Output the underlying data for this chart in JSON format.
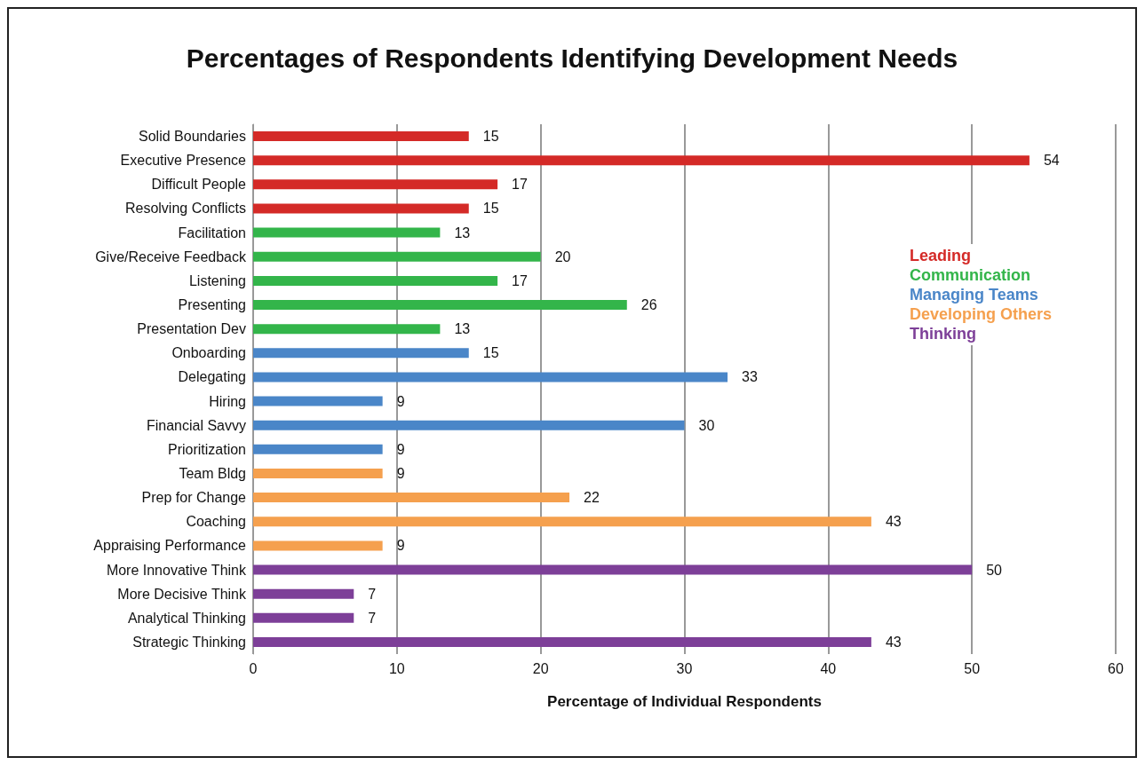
{
  "chart_data": {
    "type": "bar",
    "orientation": "horizontal",
    "title": "Percentages of Respondents Identifying Development Needs",
    "xlabel": "Percentage of Individual Respondents",
    "categories": [
      "Solid Boundaries",
      "Executive Presence",
      "Difficult People",
      "Resolving Conflicts",
      "Facilitation",
      "Give/Receive Feedback",
      "Listening",
      "Presenting",
      "Presentation Dev",
      "Onboarding",
      "Delegating",
      "Hiring",
      "Financial Savvy",
      "Prioritization",
      "Team Bldg",
      "Prep for Change",
      "Coaching",
      "Appraising Performance",
      "More Innovative Think",
      "More Decisive Think",
      "Analytical Thinking",
      "Strategic Thinking"
    ],
    "series": [
      {
        "name": "Leading",
        "color": "#d42a27",
        "values": [
          15,
          54,
          17,
          15,
          null,
          null,
          null,
          null,
          null,
          null,
          null,
          null,
          null,
          null,
          null,
          null,
          null,
          null,
          null,
          null,
          null,
          null
        ]
      },
      {
        "name": "Communication",
        "color": "#33b54a",
        "values": [
          null,
          null,
          null,
          null,
          13,
          20,
          17,
          26,
          13,
          null,
          null,
          null,
          null,
          null,
          null,
          null,
          null,
          null,
          null,
          null,
          null,
          null
        ]
      },
      {
        "name": "Managing Teams",
        "color": "#4a86c8",
        "values": [
          null,
          null,
          null,
          null,
          null,
          null,
          null,
          null,
          null,
          15,
          33,
          9,
          30,
          9,
          null,
          null,
          null,
          null,
          null,
          null,
          null,
          null
        ]
      },
      {
        "name": "Developing Others",
        "color": "#f5a04e",
        "values": [
          null,
          null,
          null,
          null,
          null,
          null,
          null,
          null,
          null,
          null,
          null,
          null,
          null,
          null,
          9,
          22,
          43,
          9,
          null,
          null,
          null,
          null
        ]
      },
      {
        "name": "Thinking",
        "color": "#7d3f98",
        "values": [
          null,
          null,
          null,
          null,
          null,
          null,
          null,
          null,
          null,
          null,
          null,
          null,
          null,
          null,
          null,
          null,
          null,
          null,
          50,
          7,
          7,
          43
        ]
      }
    ],
    "xlim": [
      0,
      60
    ],
    "xticks": [
      0,
      10,
      20,
      30,
      40,
      50,
      60
    ],
    "grid": "x",
    "legend": "right",
    "data_labels": true
  }
}
